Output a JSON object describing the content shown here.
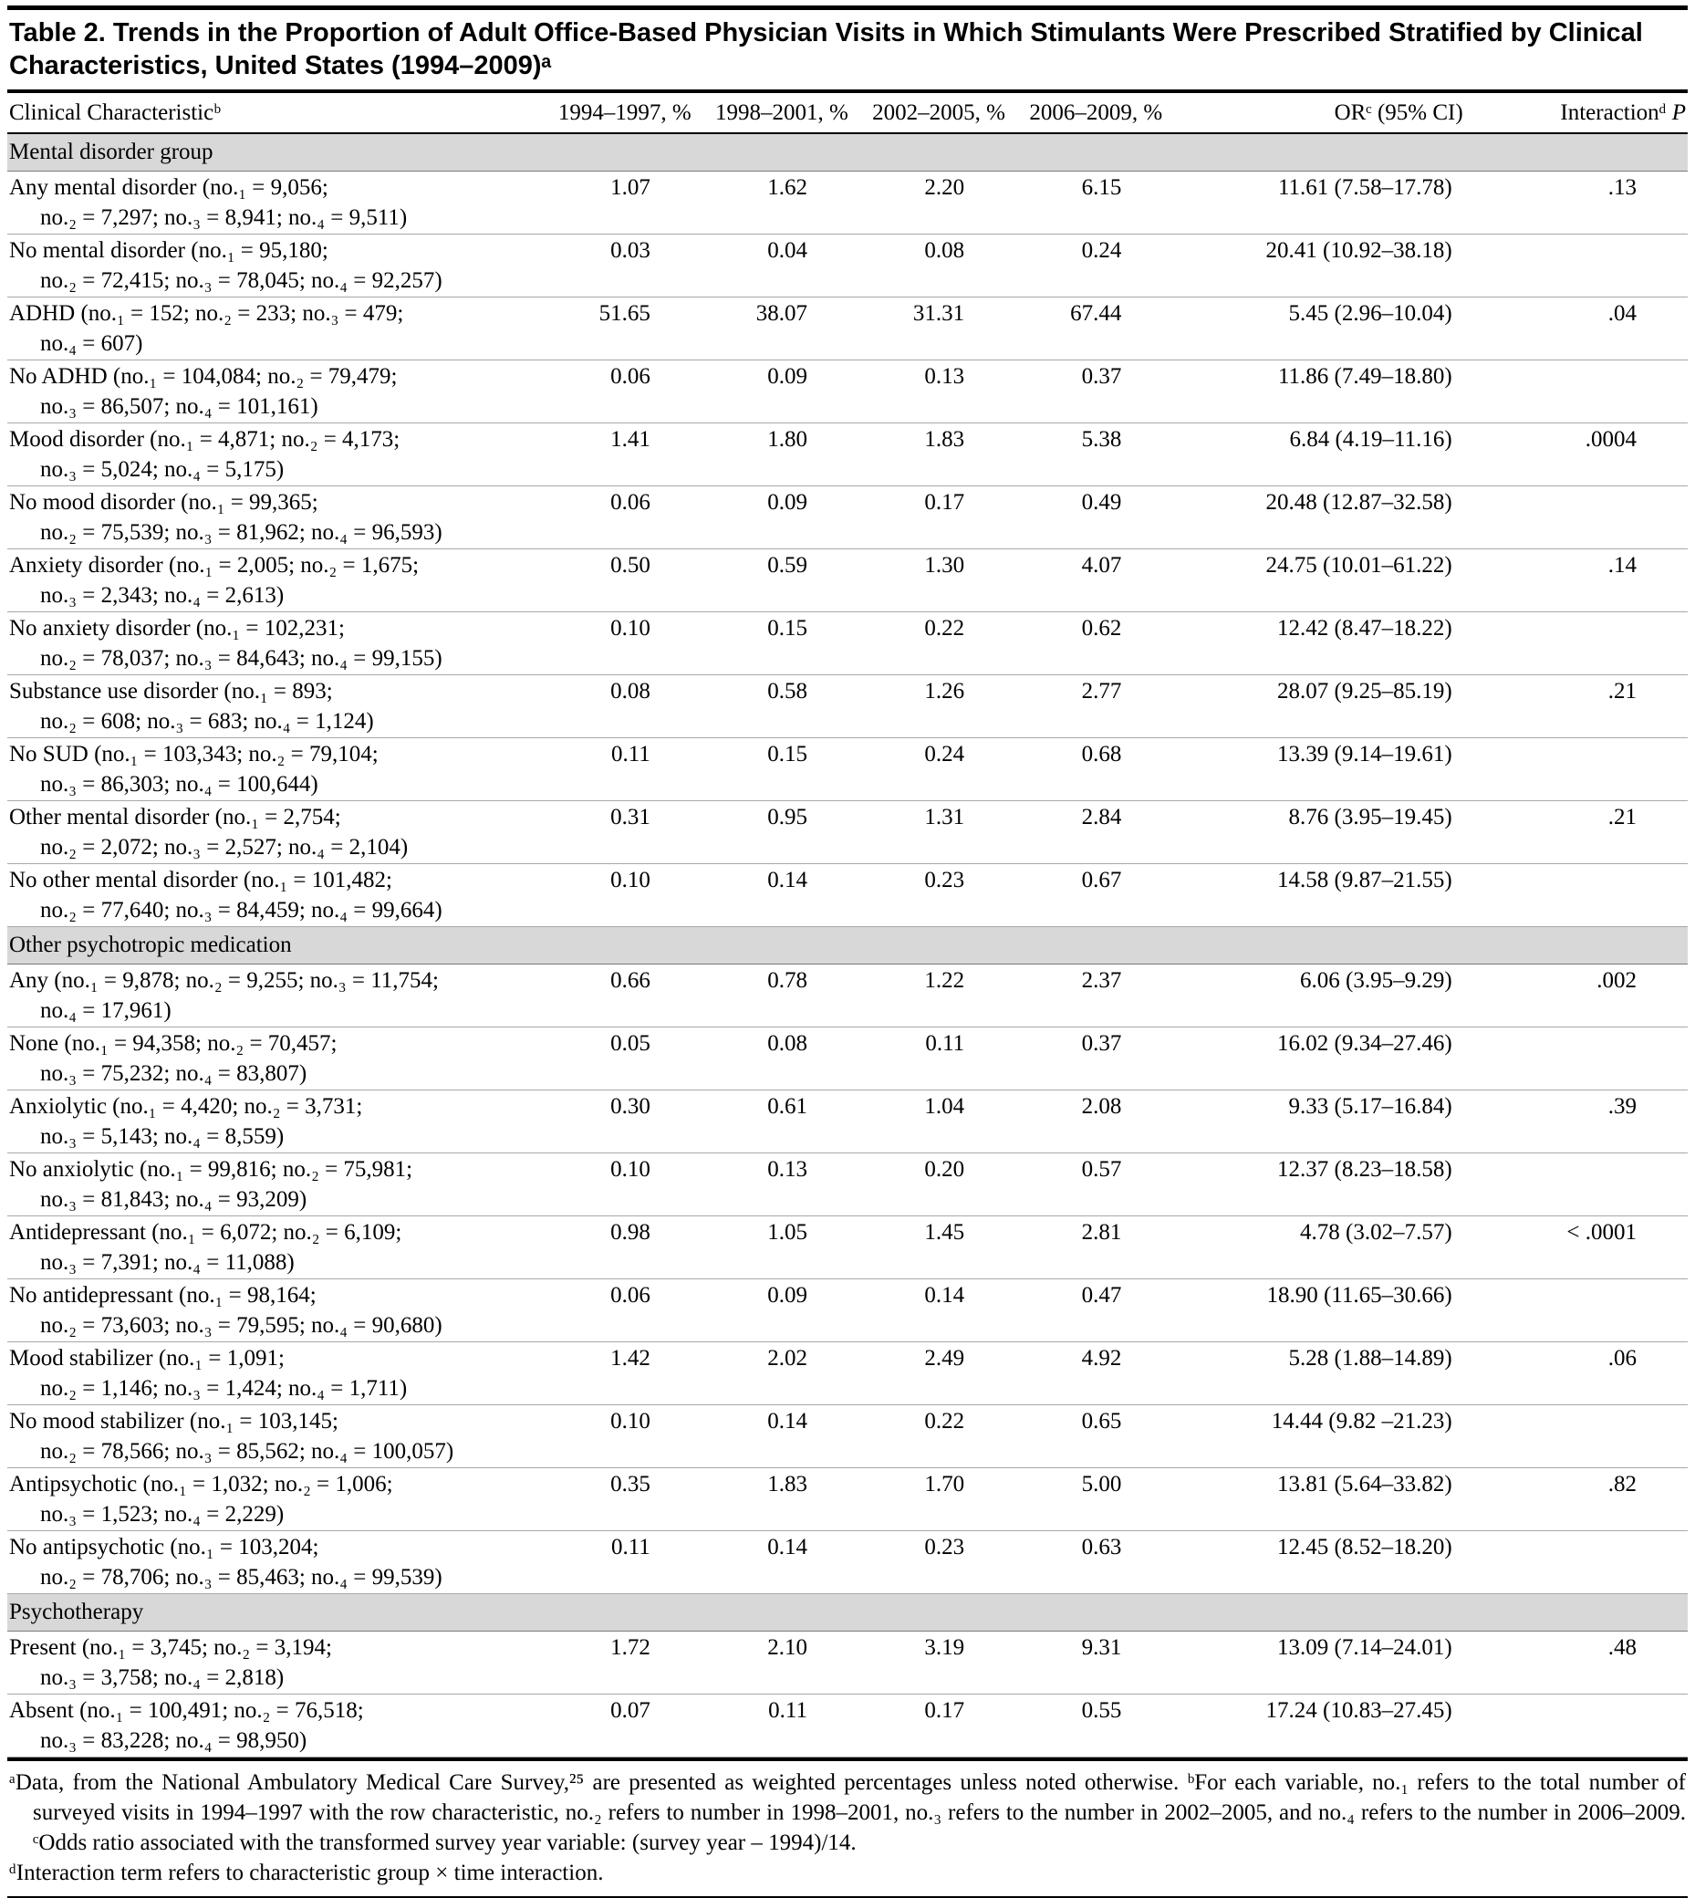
{
  "title": "Table 2. Trends in the Proportion of Adult Office-Based Physician Visits in Which Stimulants Were Prescribed Stratified by Clinical Characteristics, United States (1994–2009)ᵃ",
  "columns": [
    "Clinical Characteristicᵇ",
    "1994–1997, %",
    "1998–2001, %",
    "2002–2005, %",
    "2006–2009, %",
    "ORᶜ (95% CI)",
    "Interactionᵈ"
  ],
  "p_italic": "P",
  "sections": [
    {
      "header": "Mental disorder group",
      "rows": [
        {
          "label": [
            "Any mental disorder (no.₁ = 9,056;",
            "no.₂ = 7,297; no.₃ = 8,941; no.₄ = 9,511)"
          ],
          "values": [
            "1.07",
            "1.62",
            "2.20",
            "6.15"
          ],
          "or": "11.61 (7.58–17.78)",
          "p": ".13"
        },
        {
          "label": [
            "No mental disorder (no.₁ = 95,180;",
            "no.₂ = 72,415; no.₃ = 78,045; no.₄ = 92,257)"
          ],
          "values": [
            "0.03",
            "0.04",
            "0.08",
            "0.24"
          ],
          "or": "20.41 (10.92–38.18)",
          "p": ""
        },
        {
          "label": [
            "ADHD (no.₁ = 152; no.₂ = 233; no.₃ = 479;",
            "no.₄ = 607)"
          ],
          "values": [
            "51.65",
            "38.07",
            "31.31",
            "67.44"
          ],
          "or": "5.45 (2.96–10.04)",
          "p": ".04"
        },
        {
          "label": [
            "No ADHD (no.₁ = 104,084; no.₂ = 79,479;",
            "no.₃ = 86,507; no.₄ = 101,161)"
          ],
          "values": [
            "0.06",
            "0.09",
            "0.13",
            "0.37"
          ],
          "or": "11.86 (7.49–18.80)",
          "p": ""
        },
        {
          "label": [
            "Mood disorder (no.₁ = 4,871; no.₂ = 4,173;",
            "no.₃ = 5,024; no.₄ = 5,175)"
          ],
          "values": [
            "1.41",
            "1.80",
            "1.83",
            "5.38"
          ],
          "or": "6.84 (4.19–11.16)",
          "p": ".0004"
        },
        {
          "label": [
            "No mood disorder (no.₁ = 99,365;",
            "no.₂ = 75,539; no.₃ = 81,962; no.₄ = 96,593)"
          ],
          "values": [
            "0.06",
            "0.09",
            "0.17",
            "0.49"
          ],
          "or": "20.48 (12.87–32.58)",
          "p": ""
        },
        {
          "label": [
            "Anxiety disorder (no.₁ = 2,005; no.₂ = 1,675;",
            "no.₃ = 2,343; no.₄ = 2,613)"
          ],
          "values": [
            "0.50",
            "0.59",
            "1.30",
            "4.07"
          ],
          "or": "24.75 (10.01–61.22)",
          "p": ".14"
        },
        {
          "label": [
            "No anxiety disorder (no.₁ = 102,231;",
            "no.₂ = 78,037; no.₃ = 84,643; no.₄ = 99,155)"
          ],
          "values": [
            "0.10",
            "0.15",
            "0.22",
            "0.62"
          ],
          "or": "12.42 (8.47–18.22)",
          "p": ""
        },
        {
          "label": [
            "Substance use disorder (no.₁ = 893;",
            "no.₂ = 608; no.₃ = 683; no.₄ = 1,124)"
          ],
          "values": [
            "0.08",
            "0.58",
            "1.26",
            "2.77"
          ],
          "or": "28.07 (9.25–85.19)",
          "p": ".21"
        },
        {
          "label": [
            "No SUD (no.₁ = 103,343; no.₂ = 79,104;",
            "no.₃ = 86,303; no.₄ = 100,644)"
          ],
          "values": [
            "0.11",
            "0.15",
            "0.24",
            "0.68"
          ],
          "or": "13.39 (9.14–19.61)",
          "p": ""
        },
        {
          "label": [
            "Other mental disorder (no.₁ = 2,754;",
            "no.₂ = 2,072; no.₃ = 2,527; no.₄ = 2,104)"
          ],
          "values": [
            "0.31",
            "0.95",
            "1.31",
            "2.84"
          ],
          "or": "8.76 (3.95–19.45)",
          "p": ".21"
        },
        {
          "label": [
            "No other mental disorder (no.₁ = 101,482;",
            "no.₂ = 77,640; no.₃ = 84,459; no.₄ = 99,664)"
          ],
          "values": [
            "0.10",
            "0.14",
            "0.23",
            "0.67"
          ],
          "or": "14.58 (9.87–21.55)",
          "p": ""
        }
      ]
    },
    {
      "header": "Other psychotropic medication",
      "rows": [
        {
          "label": [
            "Any (no.₁ = 9,878; no.₂ = 9,255; no.₃ = 11,754;",
            "no.₄ = 17,961)"
          ],
          "values": [
            "0.66",
            "0.78",
            "1.22",
            "2.37"
          ],
          "or": "6.06 (3.95–9.29)",
          "p": ".002"
        },
        {
          "label": [
            "None (no.₁ = 94,358; no.₂ = 70,457;",
            "no.₃ = 75,232; no.₄ = 83,807)"
          ],
          "values": [
            "0.05",
            "0.08",
            "0.11",
            "0.37"
          ],
          "or": "16.02 (9.34–27.46)",
          "p": ""
        },
        {
          "label": [
            "Anxiolytic (no.₁ = 4,420; no.₂ = 3,731;",
            "no.₃ = 5,143; no.₄ = 8,559)"
          ],
          "values": [
            "0.30",
            "0.61",
            "1.04",
            "2.08"
          ],
          "or": "9.33 (5.17–16.84)",
          "p": ".39"
        },
        {
          "label": [
            "No anxiolytic (no.₁ = 99,816; no.₂ = 75,981;",
            "no.₃ = 81,843; no.₄ = 93,209)"
          ],
          "values": [
            "0.10",
            "0.13",
            "0.20",
            "0.57"
          ],
          "or": "12.37 (8.23–18.58)",
          "p": ""
        },
        {
          "label": [
            "Antidepressant (no.₁ = 6,072; no.₂ = 6,109;",
            "no.₃ = 7,391; no.₄ = 11,088)"
          ],
          "values": [
            "0.98",
            "1.05",
            "1.45",
            "2.81"
          ],
          "or": "4.78 (3.02–7.57)",
          "p": "< .0001"
        },
        {
          "label": [
            "No antidepressant (no.₁ = 98,164;",
            "no.₂ = 73,603; no.₃ = 79,595; no.₄ = 90,680)"
          ],
          "values": [
            "0.06",
            "0.09",
            "0.14",
            "0.47"
          ],
          "or": "18.90 (11.65–30.66)",
          "p": ""
        },
        {
          "label": [
            "Mood stabilizer (no.₁ = 1,091;",
            "no.₂ = 1,146; no.₃ = 1,424; no.₄ = 1,711)"
          ],
          "values": [
            "1.42",
            "2.02",
            "2.49",
            "4.92"
          ],
          "or": "5.28 (1.88–14.89)",
          "p": ".06"
        },
        {
          "label": [
            "No mood stabilizer (no.₁ = 103,145;",
            "no.₂ = 78,566; no.₃ = 85,562; no.₄ = 100,057)"
          ],
          "values": [
            "0.10",
            "0.14",
            "0.22",
            "0.65"
          ],
          "or": "14.44 (9.82 –21.23)",
          "p": ""
        },
        {
          "label": [
            "Antipsychotic (no.₁ = 1,032; no.₂ = 1,006;",
            "no.₃ = 1,523; no.₄ = 2,229)"
          ],
          "values": [
            "0.35",
            "1.83",
            "1.70",
            "5.00"
          ],
          "or": "13.81 (5.64–33.82)",
          "p": ".82"
        },
        {
          "label": [
            "No antipsychotic (no.₁ = 103,204;",
            "no.₂ = 78,706; no.₃ = 85,463; no.₄ = 99,539)"
          ],
          "values": [
            "0.11",
            "0.14",
            "0.23",
            "0.63"
          ],
          "or": "12.45 (8.52–18.20)",
          "p": ""
        }
      ]
    },
    {
      "header": "Psychotherapy",
      "rows": [
        {
          "label": [
            "Present (no.₁ = 3,745; no.₂ = 3,194;",
            "no.₃ = 3,758; no.₄ = 2,818)"
          ],
          "values": [
            "1.72",
            "2.10",
            "3.19",
            "9.31"
          ],
          "or": "13.09 (7.14–24.01)",
          "p": ".48"
        },
        {
          "label": [
            "Absent (no.₁ = 100,491; no.₂ = 76,518;",
            "no.₃ = 83,228; no.₄ = 98,950)"
          ],
          "values": [
            "0.07",
            "0.11",
            "0.17",
            "0.55"
          ],
          "or": "17.24 (10.83–27.45)",
          "p": ""
        }
      ]
    }
  ],
  "footnotes": [
    "ᵃData, from the National Ambulatory Medical Care Survey,²⁵ are presented as weighted percentages unless noted otherwise.  ᵇFor each variable, no.₁ refers to the total number of surveyed visits in 1994–1997 with the row characteristic, no.₂ refers to number in 1998–2001, no.₃ refers to the number in 2002–2005, and no.₄ refers to the number in 2006–2009.  ᶜOdds ratio associated with the transformed survey year variable: (survey year – 1994)/14.",
    "ᵈInteraction term refers to characteristic group × time interaction."
  ]
}
